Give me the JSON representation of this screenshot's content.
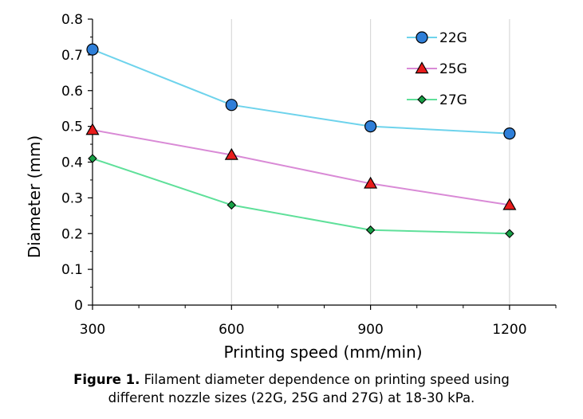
{
  "chart_data": {
    "type": "line",
    "x": [
      300,
      600,
      900,
      1200
    ],
    "xlim": [
      300,
      1300
    ],
    "ylim": [
      0,
      0.8
    ],
    "x_ticks": [
      "300",
      "600",
      "900",
      "1200"
    ],
    "y_ticks": [
      "0",
      "0.1",
      "0.2",
      "0.3",
      "0.4",
      "0.5",
      "0.6",
      "0.7",
      "0.8"
    ],
    "xlabel": "Printing speed (mm/min)",
    "ylabel": "Diameter (mm)",
    "grid": "vertical",
    "legend_position": "top-right",
    "series": [
      {
        "name": "22G",
        "values": [
          0.715,
          0.56,
          0.5,
          0.48
        ],
        "color": "#6ed3ec",
        "marker": "circle",
        "marker_color": "#2f7fd8"
      },
      {
        "name": "25G",
        "values": [
          0.49,
          0.42,
          0.34,
          0.28
        ],
        "color": "#d98ad6",
        "marker": "triangle",
        "marker_color": "#e81c1c"
      },
      {
        "name": "27G",
        "values": [
          0.41,
          0.28,
          0.21,
          0.2
        ],
        "color": "#5fe09a",
        "marker": "diamond",
        "marker_color": "#18a046"
      }
    ]
  },
  "caption": {
    "label": "Figure 1.",
    "line1": " Filament diameter dependence on printing speed using",
    "line2": "different nozzle sizes (22G, 25G and 27G) at 18-30 kPa."
  }
}
